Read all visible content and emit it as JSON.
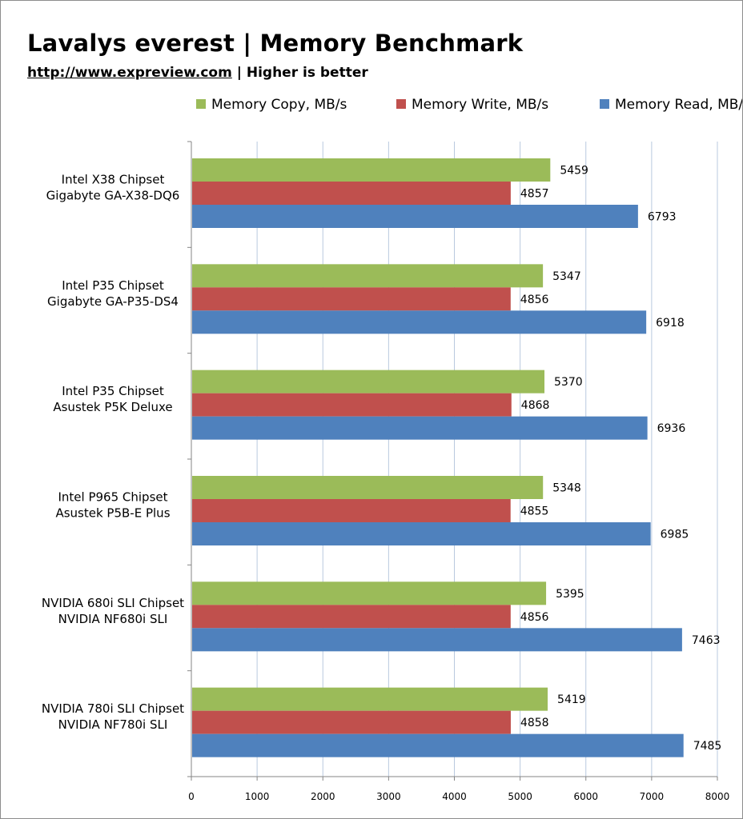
{
  "chart_data": {
    "type": "bar",
    "orientation": "horizontal",
    "title": "Lavalys everest | Memory Benchmark",
    "subtitle_link": "http://www.expreview.com",
    "subtitle_separator": "|",
    "subtitle_text": "Higher is better",
    "categories": [
      [
        "Intel X38 Chipset",
        "Gigabyte GA-X38-DQ6"
      ],
      [
        "Intel P35 Chipset",
        "Gigabyte GA-P35-DS4"
      ],
      [
        "Intel P35 Chipset",
        "Asustek P5K Deluxe"
      ],
      [
        "Intel P965 Chipset",
        "Asustek P5B-E Plus"
      ],
      [
        "NVIDIA 680i SLI Chipset",
        "NVIDIA NF680i SLI"
      ],
      [
        "NVIDIA 780i SLI Chipset",
        "NVIDIA NF780i SLI"
      ]
    ],
    "series": [
      {
        "name": "Memory Copy, MB/s",
        "color": "#9bbb59",
        "values": [
          5459,
          5347,
          5370,
          5348,
          5395,
          5419
        ]
      },
      {
        "name": "Memory Write, MB/s",
        "color": "#c0504d",
        "values": [
          4857,
          4856,
          4868,
          4855,
          4856,
          4858
        ]
      },
      {
        "name": "Memory Read, MB/s",
        "color": "#4f81bd",
        "values": [
          6793,
          6918,
          6936,
          6985,
          7463,
          7485
        ]
      }
    ],
    "xlim": [
      0,
      8000
    ],
    "xticks": [
      "0",
      "1000",
      "2000",
      "3000",
      "4000",
      "5000",
      "6000",
      "7000",
      "8000"
    ],
    "grid": true,
    "legend_position": "top",
    "colors": {
      "gridline": "#b9c9df",
      "axis": "#868686"
    }
  }
}
